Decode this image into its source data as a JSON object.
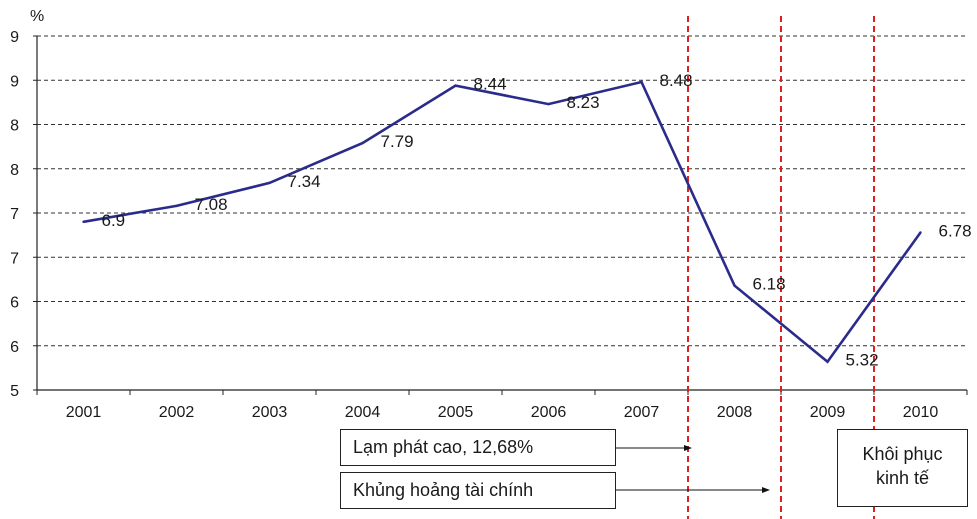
{
  "chart_data": {
    "type": "line",
    "ylabel": "%",
    "y_ticks": [
      {
        "value": 5.0,
        "label": "5"
      },
      {
        "value": 5.5,
        "label": "6"
      },
      {
        "value": 6.0,
        "label": "6"
      },
      {
        "value": 6.5,
        "label": "7"
      },
      {
        "value": 7.0,
        "label": "7"
      },
      {
        "value": 7.5,
        "label": "8"
      },
      {
        "value": 8.0,
        "label": "8"
      },
      {
        "value": 8.5,
        "label": "9"
      },
      {
        "value": 9.0,
        "label": "9"
      }
    ],
    "ylim": [
      5,
      9
    ],
    "categories": [
      "2001",
      "2002",
      "2003",
      "2004",
      "2005",
      "2006",
      "2007",
      "2008",
      "2009",
      "2010"
    ],
    "series": [
      {
        "values": [
          6.9,
          7.08,
          7.34,
          7.79,
          8.44,
          8.23,
          8.48,
          6.18,
          5.32,
          6.78
        ]
      }
    ],
    "grid": "horizontal-dashed",
    "line_color": "#2b2b8c",
    "marker_lines": {
      "color": "#e02020",
      "at_categories": [
        "2007",
        "2008",
        "2009"
      ]
    },
    "annotations": {
      "inflation": "Lạm phát cao, 12,68%",
      "crisis": "Khủng hoảng tài chính",
      "recovery_line1": "Khôi phục",
      "recovery_line2": "kinh tế"
    }
  }
}
